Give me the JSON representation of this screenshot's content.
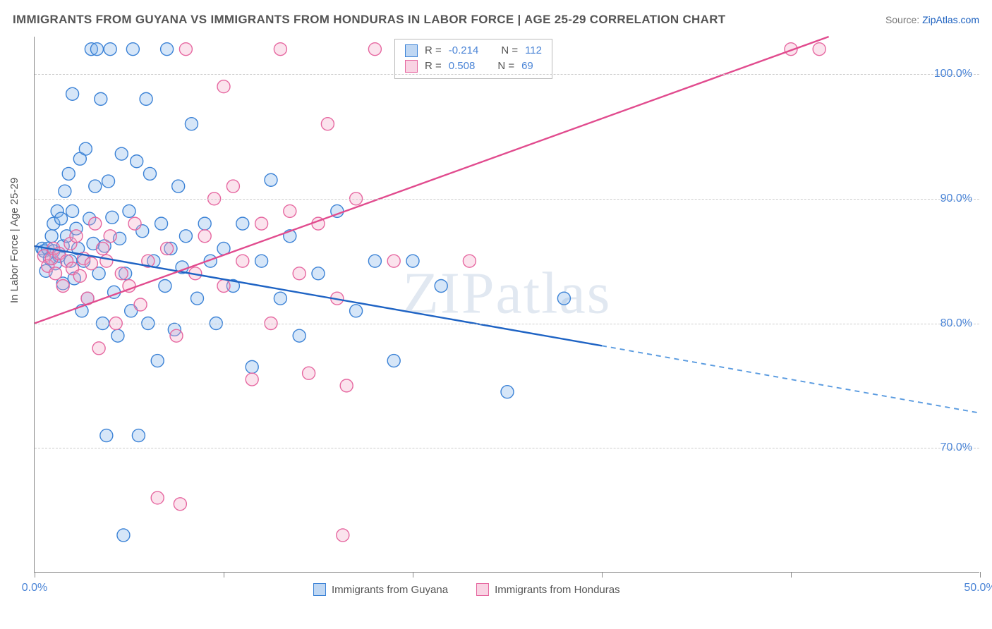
{
  "title": "IMMIGRANTS FROM GUYANA VS IMMIGRANTS FROM HONDURAS IN LABOR FORCE | AGE 25-29 CORRELATION CHART",
  "source_label": "Source:",
  "source_link": "ZipAtlas.com",
  "ylabel": "In Labor Force | Age 25-29",
  "watermark": "ZIPatlas",
  "chart": {
    "type": "scatter-with-regression",
    "background_color": "#ffffff",
    "grid_color": "#cccccc",
    "axis_color": "#888888",
    "tick_label_color": "#4a84d6",
    "tick_fontsize": 16,
    "label_fontsize": 15,
    "xlim": [
      0,
      50
    ],
    "ylim": [
      60,
      103
    ],
    "yticks": [
      70,
      80,
      90,
      100
    ],
    "ytick_labels": [
      "70.0%",
      "80.0%",
      "90.0%",
      "100.0%"
    ],
    "xticks": [
      0,
      10,
      20,
      30,
      40,
      50
    ],
    "xtick_labels": [
      "0.0%",
      "",
      "",
      "",
      "",
      "50.0%"
    ],
    "marker_radius": 9,
    "marker_stroke_width": 1.4,
    "marker_fill_opacity": 0.32,
    "trend_line_width": 2.4
  },
  "series": [
    {
      "key": "guyana",
      "label": "Immigrants from Guyana",
      "color_stroke": "#3b82d6",
      "color_fill": "#7fb0e8",
      "trend_color": "#1e63c4",
      "trend_dash_color": "#5a9be0",
      "R": "-0.214",
      "N": "112",
      "trend": {
        "x1": 0,
        "y1": 86.2,
        "x2": 30,
        "y2": 78.2,
        "x2_ext": 50,
        "y2_ext": 72.8
      },
      "points": [
        [
          0.4,
          86.0
        ],
        [
          0.5,
          85.8
        ],
        [
          0.6,
          84.2
        ],
        [
          0.7,
          86.0
        ],
        [
          0.8,
          85.2
        ],
        [
          0.9,
          87.0
        ],
        [
          1.0,
          88.0
        ],
        [
          1.0,
          85.8
        ],
        [
          1.1,
          84.8
        ],
        [
          1.2,
          89.0
        ],
        [
          1.3,
          85.4
        ],
        [
          1.4,
          88.4
        ],
        [
          1.5,
          86.2
        ],
        [
          1.5,
          83.2
        ],
        [
          1.6,
          90.6
        ],
        [
          1.7,
          87.0
        ],
        [
          1.8,
          92.0
        ],
        [
          1.9,
          85.0
        ],
        [
          2.0,
          89.0
        ],
        [
          2.0,
          98.4
        ],
        [
          2.1,
          83.6
        ],
        [
          2.2,
          87.6
        ],
        [
          2.3,
          86.0
        ],
        [
          2.4,
          93.2
        ],
        [
          2.5,
          81.0
        ],
        [
          2.6,
          85.0
        ],
        [
          2.7,
          94.0
        ],
        [
          2.8,
          82.0
        ],
        [
          2.9,
          88.4
        ],
        [
          3.0,
          102.0
        ],
        [
          3.1,
          86.4
        ],
        [
          3.2,
          91.0
        ],
        [
          3.3,
          102.0
        ],
        [
          3.4,
          84.0
        ],
        [
          3.5,
          98.0
        ],
        [
          3.6,
          80.0
        ],
        [
          3.7,
          86.2
        ],
        [
          3.8,
          71.0
        ],
        [
          3.9,
          91.4
        ],
        [
          4.0,
          102.0
        ],
        [
          4.1,
          88.5
        ],
        [
          4.2,
          82.5
        ],
        [
          4.4,
          79.0
        ],
        [
          4.5,
          86.8
        ],
        [
          4.6,
          93.6
        ],
        [
          4.7,
          63.0
        ],
        [
          4.8,
          84.0
        ],
        [
          5.0,
          89.0
        ],
        [
          5.1,
          81.0
        ],
        [
          5.2,
          102.0
        ],
        [
          5.4,
          93.0
        ],
        [
          5.5,
          71.0
        ],
        [
          5.7,
          87.4
        ],
        [
          5.9,
          98.0
        ],
        [
          6.0,
          80.0
        ],
        [
          6.1,
          92.0
        ],
        [
          6.3,
          85.0
        ],
        [
          6.5,
          77.0
        ],
        [
          6.7,
          88.0
        ],
        [
          6.9,
          83.0
        ],
        [
          7.0,
          102.0
        ],
        [
          7.2,
          86.0
        ],
        [
          7.4,
          79.5
        ],
        [
          7.6,
          91.0
        ],
        [
          7.8,
          84.5
        ],
        [
          8.0,
          87.0
        ],
        [
          8.3,
          96.0
        ],
        [
          8.6,
          82.0
        ],
        [
          9.0,
          88.0
        ],
        [
          9.3,
          85.0
        ],
        [
          9.6,
          80.0
        ],
        [
          10.0,
          86.0
        ],
        [
          10.5,
          83.0
        ],
        [
          11.0,
          88.0
        ],
        [
          11.5,
          76.5
        ],
        [
          12.0,
          85.0
        ],
        [
          12.5,
          91.5
        ],
        [
          13.0,
          82.0
        ],
        [
          13.5,
          87.0
        ],
        [
          14.0,
          79.0
        ],
        [
          15.0,
          84.0
        ],
        [
          16.0,
          89.0
        ],
        [
          17.0,
          81.0
        ],
        [
          18.0,
          85.0
        ],
        [
          19.0,
          77.0
        ],
        [
          20.0,
          85.0
        ],
        [
          21.5,
          83.0
        ],
        [
          25.0,
          74.5
        ],
        [
          28.0,
          82.0
        ]
      ]
    },
    {
      "key": "honduras",
      "label": "Immigrants from Honduras",
      "color_stroke": "#e667a0",
      "color_fill": "#f4a8c8",
      "trend_color": "#e14b8e",
      "trend_dash_color": "#e88fb5",
      "R": "0.508",
      "N": "69",
      "trend": {
        "x1": 0,
        "y1": 80.0,
        "x2": 42,
        "y2": 103.0,
        "x2_ext": 42,
        "y2_ext": 103.0
      },
      "points": [
        [
          0.5,
          85.4
        ],
        [
          0.7,
          84.6
        ],
        [
          0.9,
          85.2
        ],
        [
          1.0,
          86.0
        ],
        [
          1.1,
          84.0
        ],
        [
          1.3,
          85.6
        ],
        [
          1.5,
          83.0
        ],
        [
          1.7,
          85.0
        ],
        [
          1.9,
          86.4
        ],
        [
          2.0,
          84.4
        ],
        [
          2.2,
          87.0
        ],
        [
          2.4,
          83.8
        ],
        [
          2.6,
          85.2
        ],
        [
          2.8,
          82.0
        ],
        [
          3.0,
          84.8
        ],
        [
          3.2,
          88.0
        ],
        [
          3.4,
          78.0
        ],
        [
          3.6,
          86.0
        ],
        [
          3.8,
          85.0
        ],
        [
          4.0,
          87.0
        ],
        [
          4.3,
          80.0
        ],
        [
          4.6,
          84.0
        ],
        [
          5.0,
          83.0
        ],
        [
          5.3,
          88.0
        ],
        [
          5.6,
          81.5
        ],
        [
          6.0,
          85.0
        ],
        [
          6.5,
          66.0
        ],
        [
          7.0,
          86.0
        ],
        [
          7.5,
          79.0
        ],
        [
          7.7,
          65.5
        ],
        [
          8.0,
          102.0
        ],
        [
          8.5,
          84.0
        ],
        [
          9.0,
          87.0
        ],
        [
          9.5,
          90.0
        ],
        [
          10.0,
          99.0
        ],
        [
          10.0,
          83.0
        ],
        [
          10.5,
          91.0
        ],
        [
          11.0,
          85.0
        ],
        [
          11.5,
          75.5
        ],
        [
          12.0,
          88.0
        ],
        [
          12.5,
          80.0
        ],
        [
          13.0,
          102.0
        ],
        [
          13.5,
          89.0
        ],
        [
          14.0,
          84.0
        ],
        [
          14.5,
          76.0
        ],
        [
          15.0,
          88.0
        ],
        [
          15.5,
          96.0
        ],
        [
          16.0,
          82.0
        ],
        [
          16.3,
          63.0
        ],
        [
          16.5,
          75.0
        ],
        [
          17.0,
          90.0
        ],
        [
          18.0,
          102.0
        ],
        [
          19.0,
          85.0
        ],
        [
          23.0,
          85.0
        ],
        [
          26.0,
          102.0
        ],
        [
          27.0,
          102.0
        ],
        [
          40.0,
          102.0
        ],
        [
          41.5,
          102.0
        ]
      ]
    }
  ],
  "legend_top": {
    "r_label": "R =",
    "n_label": "N ="
  }
}
